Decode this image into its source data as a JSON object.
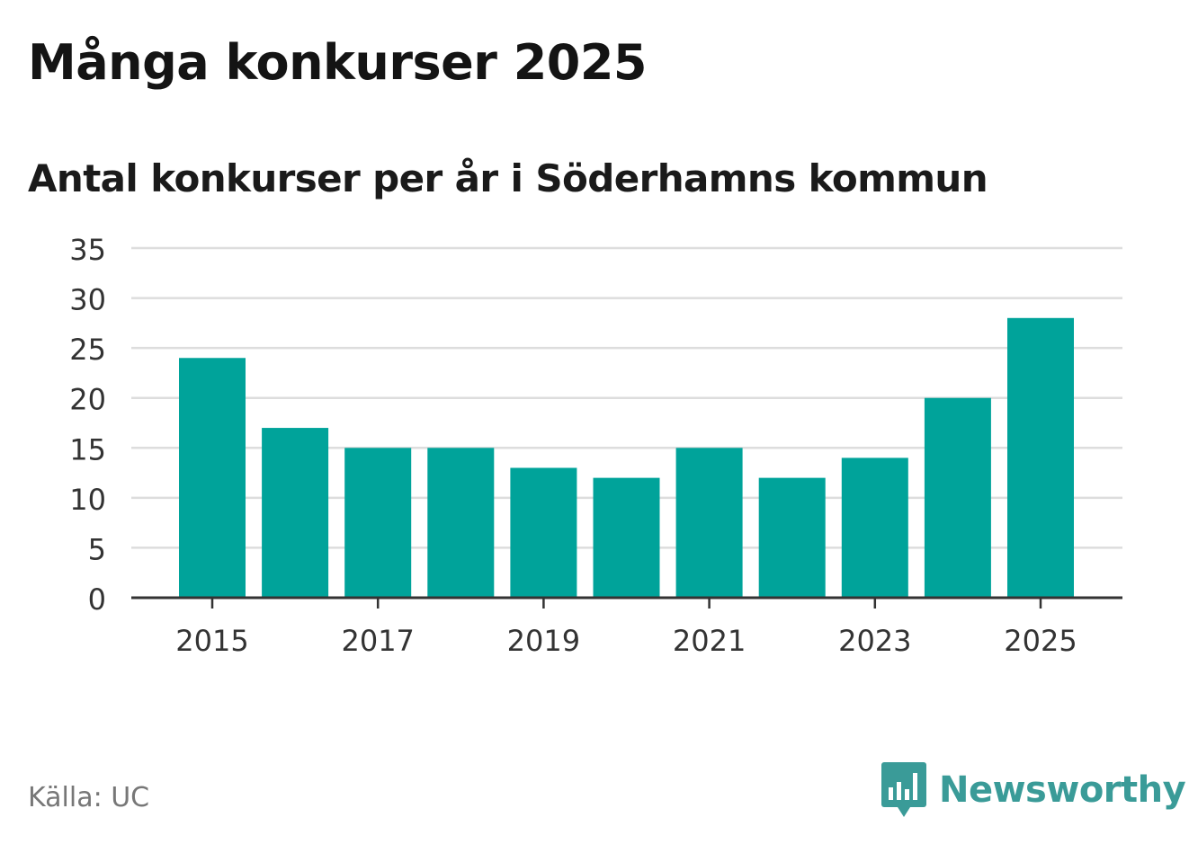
{
  "title": "Många konkurser 2025",
  "subtitle": "Antal konkurser per år i Söderhamns kommun",
  "source": "Källa: UC",
  "brand": {
    "name": "Newsworthy",
    "icon": "newsworthy-logo-icon",
    "color": "#3a9b98"
  },
  "chart_data": {
    "type": "bar",
    "categories": [
      "2015",
      "2016",
      "2017",
      "2018",
      "2019",
      "2020",
      "2021",
      "2022",
      "2023",
      "2024",
      "2025"
    ],
    "values": [
      24,
      17,
      15,
      15,
      13,
      12,
      15,
      12,
      14,
      20,
      28
    ],
    "x_tick_labels": [
      "2015",
      "2017",
      "2019",
      "2021",
      "2023",
      "2025"
    ],
    "y_ticks": [
      0,
      5,
      10,
      15,
      20,
      25,
      30,
      35
    ],
    "ylim": [
      0,
      35
    ],
    "xlabel": "",
    "ylabel": "",
    "grid": true,
    "legend": "none",
    "bar_color": "#00a39a",
    "grid_color": "#dddddd",
    "axis_color": "#333333"
  }
}
